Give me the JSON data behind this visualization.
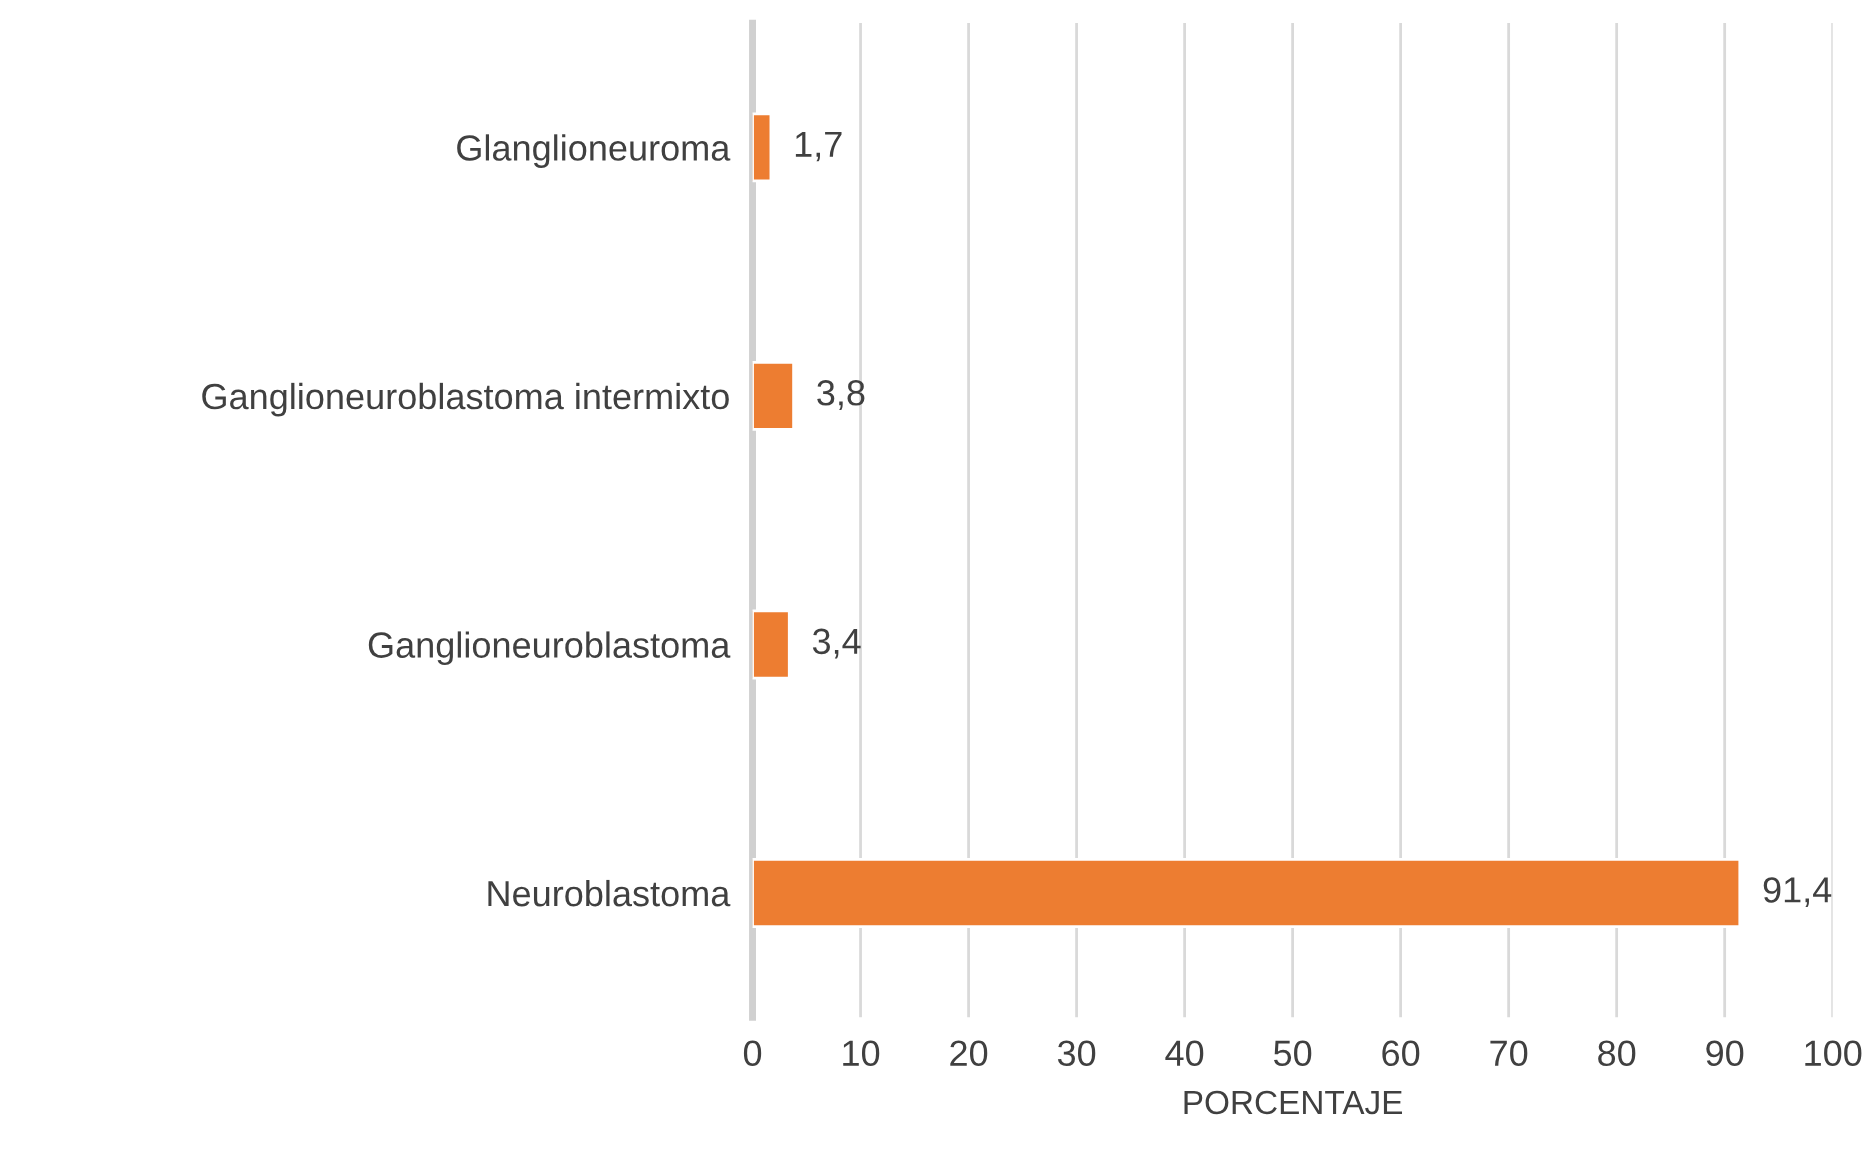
{
  "chart_data": {
    "type": "bar",
    "orientation": "horizontal",
    "xlabel": "PORCENTAJE",
    "categories": [
      "Glanglioneuroma",
      "Ganglioneuroblastoma intermixto",
      "Ganglioneuroblastoma",
      "Neuroblastoma"
    ],
    "values": [
      1.7,
      3.8,
      3.4,
      91.4
    ],
    "value_labels": [
      "1,7",
      "3,8",
      "3,4",
      "91,4"
    ],
    "color": "#ed7d31",
    "xlim": [
      0,
      100
    ],
    "xticks": [
      0,
      10,
      20,
      30,
      40,
      50,
      60,
      70,
      80,
      90,
      100
    ],
    "grid": "x",
    "legend": false
  }
}
